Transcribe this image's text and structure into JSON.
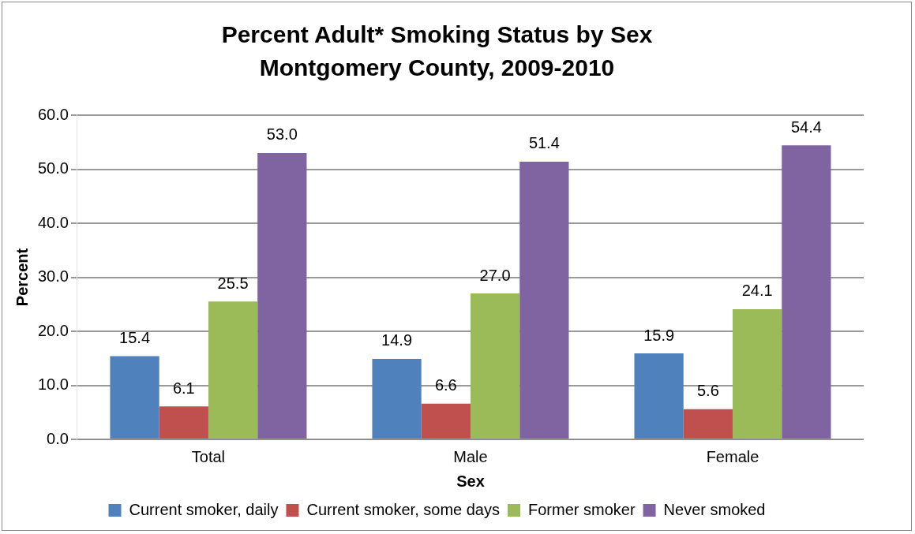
{
  "chart_data": {
    "type": "bar",
    "title": "Percent Adult* Smoking Status by Sex",
    "subtitle": "Montgomery County, 2009-2010",
    "xlabel": "Sex",
    "ylabel": "Percent",
    "categories": [
      "Total",
      "Male",
      "Female"
    ],
    "series": [
      {
        "name": "Current smoker, daily",
        "color": "#4f81bd",
        "values": [
          15.4,
          14.9,
          15.9
        ],
        "value_labels": [
          "15.4",
          "14.9",
          "15.9"
        ]
      },
      {
        "name": "Current smoker, some days",
        "color": "#c0504d",
        "values": [
          6.1,
          6.6,
          5.6
        ],
        "value_labels": [
          "6.1",
          "6.6",
          "5.6"
        ]
      },
      {
        "name": "Former smoker",
        "color": "#9bbb59",
        "values": [
          25.5,
          27.0,
          24.1
        ],
        "value_labels": [
          "25.5",
          "27.0",
          "24.1"
        ]
      },
      {
        "name": "Never smoked",
        "color": "#8064a2",
        "values": [
          53.0,
          51.4,
          54.4
        ],
        "value_labels": [
          "53.0",
          "51.4",
          "54.4"
        ]
      }
    ],
    "ylim": [
      0,
      60
    ],
    "yticks": [
      {
        "value": 0,
        "label": "0.0"
      },
      {
        "value": 10,
        "label": "10.0"
      },
      {
        "value": 20,
        "label": "20.0"
      },
      {
        "value": 30,
        "label": "30.0"
      },
      {
        "value": 40,
        "label": "40.0"
      },
      {
        "value": 50,
        "label": "50.0"
      },
      {
        "value": 60,
        "label": "60.0"
      }
    ],
    "grid": "y",
    "legend": "bottom"
  }
}
